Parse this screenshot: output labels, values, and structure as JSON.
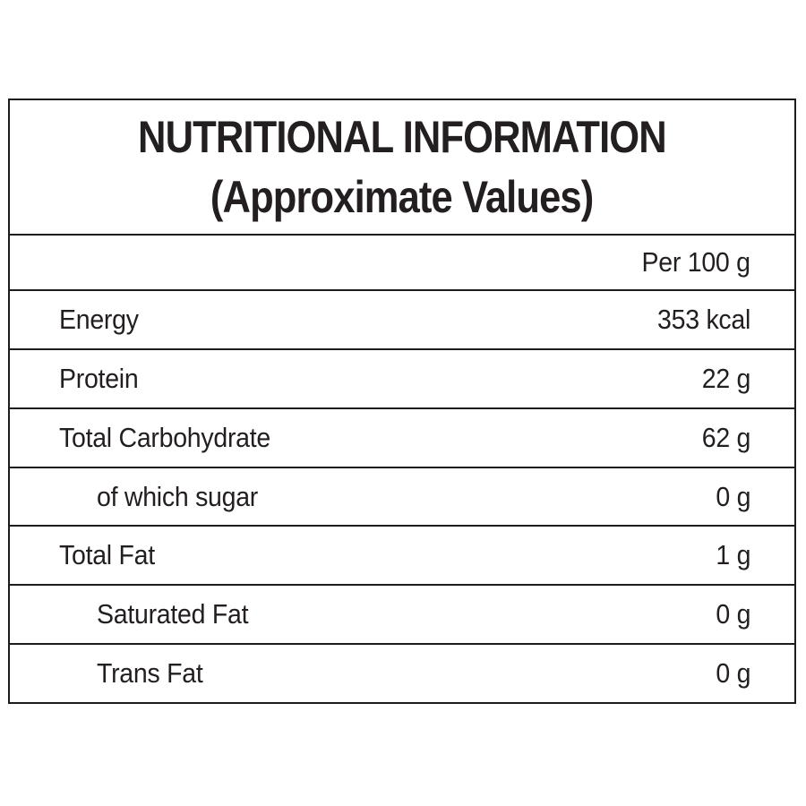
{
  "title": {
    "line1": "NUTRITIONAL INFORMATION",
    "line2": "(Approximate Values)"
  },
  "table": {
    "column_header": "Per 100 g",
    "rows": [
      {
        "label": "Energy",
        "value": "353 kcal",
        "indent": false
      },
      {
        "label": "Protein",
        "value": "22 g",
        "indent": false
      },
      {
        "label": "Total Carbohydrate",
        "value": "62 g",
        "indent": false
      },
      {
        "label": "of which sugar",
        "value": "0 g",
        "indent": true
      },
      {
        "label": "Total Fat",
        "value": "1 g",
        "indent": false
      },
      {
        "label": "Saturated Fat",
        "value": "0 g",
        "indent": true
      },
      {
        "label": "Trans Fat",
        "value": "0 g",
        "indent": true
      }
    ]
  },
  "colors": {
    "text": "#231f20",
    "border": "#1c1c1c",
    "background": "#ffffff"
  }
}
